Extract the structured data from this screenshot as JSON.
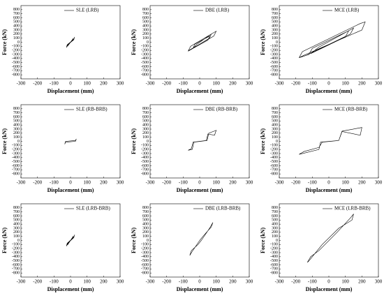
{
  "chart_data": [
    {
      "type": "line",
      "xlabel": "Displacement (mm)",
      "ylabel": "Force (kN)",
      "legend": "upper right",
      "grid": false,
      "xlim": [
        -300,
        300
      ],
      "ylim": [
        -900,
        900
      ],
      "xticks": [
        -300,
        -200,
        -100,
        0,
        100,
        200,
        300
      ],
      "yticks": [
        -800,
        -700,
        -600,
        -500,
        -400,
        -300,
        -200,
        -100,
        0,
        100,
        200,
        300,
        400,
        500,
        600,
        700,
        800
      ],
      "x": [
        -25,
        -20,
        20,
        25,
        20,
        -20,
        -25,
        -15,
        15,
        18,
        -18
      ],
      "series": [
        {
          "name": "SLE (LRB)",
          "color": "#000000",
          "values": [
            -130,
            -60,
            70,
            130,
            60,
            -70,
            -130,
            -60,
            60,
            100,
            -100
          ]
        }
      ]
    },
    {
      "type": "line",
      "xlabel": "Displacement (mm)",
      "ylabel": "Force (kN)",
      "legend": "upper right",
      "grid": false,
      "xlim": [
        -300,
        300
      ],
      "ylim": [
        -900,
        900
      ],
      "xticks": [
        -300,
        -200,
        -100,
        0,
        100,
        200,
        300
      ],
      "yticks": [
        -800,
        -700,
        -600,
        -500,
        -400,
        -300,
        -200,
        -100,
        0,
        100,
        200,
        300,
        400,
        500,
        600,
        700,
        800
      ],
      "x": [
        -70,
        -55,
        95,
        100,
        85,
        -65,
        -70,
        -40,
        -30,
        60,
        50,
        -40,
        -20,
        70,
        60,
        -50
      ],
      "series": [
        {
          "name": "DBE (LRB)",
          "color": "#000000",
          "values": [
            -220,
            -100,
            260,
            270,
            150,
            -200,
            -220,
            -150,
            -50,
            150,
            50,
            -150,
            -60,
            200,
            100,
            -170
          ]
        }
      ]
    },
    {
      "type": "line",
      "xlabel": "Displacement (mm)",
      "ylabel": "Force (kN)",
      "legend": "upper right",
      "grid": false,
      "xlim": [
        -300,
        300
      ],
      "ylim": [
        -900,
        900
      ],
      "xticks": [
        -300,
        -200,
        -100,
        0,
        100,
        200,
        300
      ],
      "yticks": [
        -800,
        -700,
        -600,
        -500,
        -400,
        -300,
        -200,
        -100,
        0,
        100,
        200,
        300,
        400,
        500,
        600,
        700,
        800
      ],
      "x": [
        -180,
        -160,
        190,
        220,
        200,
        -150,
        -180,
        -120,
        -100,
        120,
        100,
        -110,
        -60,
        150,
        130,
        -140
      ],
      "series": [
        {
          "name": "MCE (LRB)",
          "color": "#000000",
          "values": [
            -380,
            -230,
            460,
            500,
            300,
            -320,
            -380,
            -300,
            -150,
            280,
            130,
            -280,
            -120,
            350,
            200,
            -330
          ]
        }
      ]
    },
    {
      "type": "line",
      "xlabel": "Displacement (mm)",
      "ylabel": "Force (kN)",
      "legend": "upper right",
      "grid": false,
      "xlim": [
        -300,
        300
      ],
      "ylim": [
        -900,
        900
      ],
      "xticks": [
        -300,
        -200,
        -100,
        0,
        100,
        200,
        300
      ],
      "yticks": [
        -800,
        -700,
        -600,
        -500,
        -400,
        -300,
        -200,
        -100,
        0,
        100,
        200,
        300,
        400,
        500,
        600,
        700,
        800
      ],
      "x": [
        -35,
        -30,
        30,
        35,
        30,
        -30,
        -35
      ],
      "series": [
        {
          "name": "SLE (RB-BRB)",
          "color": "#000000",
          "values": [
            -70,
            0,
            20,
            60,
            0,
            -20,
            -70
          ]
        }
      ]
    },
    {
      "type": "line",
      "xlabel": "Displacement (mm)",
      "ylabel": "Force (kN)",
      "legend": "upper right",
      "grid": false,
      "xlim": [
        -300,
        300
      ],
      "ylim": [
        -900,
        900
      ],
      "xticks": [
        -300,
        -200,
        -100,
        0,
        100,
        200,
        300
      ],
      "yticks": [
        -800,
        -700,
        -600,
        -500,
        -400,
        -300,
        -200,
        -100,
        0,
        100,
        200,
        300,
        400,
        500,
        600,
        700,
        800
      ],
      "x": [
        -70,
        -45,
        -35,
        45,
        55,
        100,
        90,
        50,
        40,
        -40,
        -50,
        -70
      ],
      "series": [
        {
          "name": "DBE (RB-BRB)",
          "color": "#000000",
          "values": [
            -220,
            -200,
            -20,
            20,
            200,
            270,
            150,
            180,
            20,
            -20,
            -180,
            -220
          ]
        }
      ]
    },
    {
      "type": "line",
      "xlabel": "Displacement (mm)",
      "ylabel": "Force (kN)",
      "legend": "upper right",
      "grid": false,
      "xlim": [
        -300,
        300
      ],
      "ylim": [
        -900,
        900
      ],
      "xticks": [
        -300,
        -200,
        -100,
        0,
        100,
        200,
        300
      ],
      "yticks": [
        -800,
        -700,
        -600,
        -500,
        -400,
        -300,
        -200,
        -100,
        0,
        100,
        200,
        300,
        400,
        500,
        600,
        700,
        800
      ],
      "x": [
        -180,
        -150,
        -60,
        -40,
        60,
        80,
        200,
        190,
        80,
        60,
        -50,
        -60,
        -180
      ],
      "series": [
        {
          "name": "MCE (RB-BRB)",
          "color": "#000000",
          "values": [
            -320,
            -250,
            -150,
            -20,
            20,
            250,
            340,
            150,
            240,
            20,
            -20,
            -200,
            -320
          ]
        }
      ]
    },
    {
      "type": "line",
      "xlabel": "Displacement (mm)",
      "ylabel": "Force (kN)",
      "legend": "upper right",
      "grid": false,
      "xlim": [
        -300,
        300
      ],
      "ylim": [
        -900,
        900
      ],
      "xticks": [
        -300,
        -200,
        -100,
        0,
        100,
        200,
        300
      ],
      "yticks": [
        -800,
        -700,
        -600,
        -500,
        -400,
        -300,
        -200,
        -100,
        0,
        100,
        200,
        300,
        400,
        500,
        600,
        700,
        800
      ],
      "x": [
        -25,
        -20,
        20,
        25,
        20,
        -20,
        -25,
        -15,
        15,
        18,
        -18
      ],
      "series": [
        {
          "name": "SLE (LRB-BRB)",
          "color": "#000000",
          "values": [
            -140,
            -70,
            80,
            140,
            70,
            -80,
            -140,
            -70,
            70,
            110,
            -110
          ]
        }
      ]
    },
    {
      "type": "line",
      "xlabel": "Displacement (mm)",
      "ylabel": "Force (kN)",
      "legend": "upper right",
      "grid": false,
      "xlim": [
        -300,
        300
      ],
      "ylim": [
        -900,
        900
      ],
      "xticks": [
        -300,
        -200,
        -100,
        0,
        100,
        200,
        300
      ],
      "yticks": [
        -800,
        -700,
        -600,
        -500,
        -400,
        -300,
        -200,
        -100,
        0,
        100,
        200,
        300,
        400,
        500,
        600,
        700,
        800
      ],
      "x": [
        -60,
        -50,
        -10,
        10,
        60,
        80,
        70,
        20,
        0,
        -50,
        -60
      ],
      "series": [
        {
          "name": "DBE (LRB-BRB)",
          "color": "#000000",
          "values": [
            -370,
            -250,
            -100,
            0,
            300,
            440,
            330,
            100,
            0,
            -300,
            -370
          ]
        }
      ]
    },
    {
      "type": "line",
      "xlabel": "Displacement (mm)",
      "ylabel": "Force (kN)",
      "legend": "upper right",
      "grid": false,
      "xlim": [
        -300,
        300
      ],
      "ylim": [
        -900,
        900
      ],
      "xticks": [
        -300,
        -200,
        -100,
        0,
        100,
        200,
        300
      ],
      "yticks": [
        -800,
        -700,
        -600,
        -500,
        -400,
        -300,
        -200,
        -100,
        0,
        100,
        200,
        300,
        400,
        500,
        600,
        700,
        800
      ],
      "x": [
        -130,
        -110,
        -60,
        50,
        130,
        150,
        140,
        60,
        -40,
        -120,
        -130
      ],
      "series": [
        {
          "name": "MCE (LRB-BRB)",
          "color": "#000000",
          "values": [
            -540,
            -400,
            -250,
            200,
            550,
            650,
            500,
            300,
            -100,
            -500,
            -540
          ]
        }
      ]
    }
  ]
}
